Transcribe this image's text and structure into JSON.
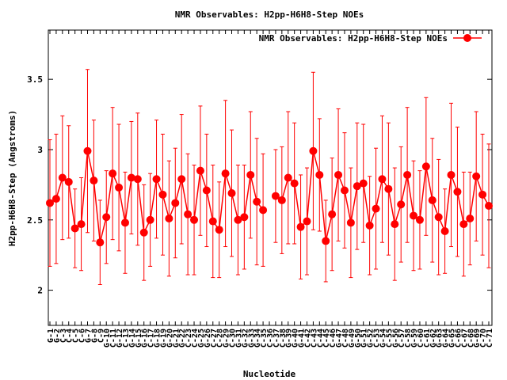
{
  "chart_data": {
    "type": "line",
    "title": "NMR Observables: H2pp-H6H8-Step NOEs",
    "xlabel": "Nucleotide",
    "ylabel": "H2pp-H6H8-Step (Angstroms)",
    "ylim": [
      1.75,
      3.85
    ],
    "yticks": [
      2,
      2.5,
      3,
      3.5
    ],
    "ytick_labels": [
      "2",
      "2.5",
      "3",
      "3.5"
    ],
    "legend": "top-right",
    "grid": false,
    "categories": [
      "G-1",
      "G-2",
      "C-3",
      "C-4",
      "C-5",
      "C-6",
      "G-7",
      "G-8",
      "C-9",
      "G-10",
      "C-11",
      "G-12",
      "C-13",
      "G-14",
      "G-15",
      "G-16",
      "C-17",
      "G-18",
      "G-19",
      "G-20",
      "G-21",
      "G-22",
      "C-23",
      "C-24",
      "G-25",
      "G-26",
      "C-27",
      "C-28",
      "G-29",
      "C-30",
      "G-31",
      "G-32",
      "G-33",
      "G-34",
      "C-35",
      "C-36",
      "C-37",
      "C-38",
      "G-39",
      "G-40",
      "G-41",
      "C-42",
      "C-43",
      "C-44",
      "C-45",
      "C-46",
      "G-47",
      "C-48",
      "G-49",
      "G-50",
      "G-51",
      "G-52",
      "C-53",
      "G-54",
      "C-55",
      "G-56",
      "C-57",
      "C-58",
      "G-59",
      "C-60",
      "C-61",
      "G-62",
      "G-63",
      "G-64",
      "G-65",
      "C-66",
      "C-67",
      "C-68",
      "G-69",
      "C-70",
      "C-71"
    ],
    "series": [
      {
        "name": "NMR Observables: H2pp-H6H8-Step NOEs",
        "color": "#ff0000",
        "values": [
          2.62,
          2.65,
          2.8,
          2.77,
          2.44,
          2.47,
          2.99,
          2.78,
          2.34,
          2.52,
          2.83,
          2.73,
          2.48,
          2.8,
          2.79,
          2.41,
          2.5,
          2.79,
          2.68,
          2.51,
          2.62,
          2.79,
          2.54,
          2.5,
          2.85,
          2.71,
          2.49,
          2.43,
          2.83,
          2.69,
          2.5,
          2.52,
          2.82,
          2.63,
          2.57,
          null,
          2.67,
          2.64,
          2.8,
          2.76,
          2.45,
          2.49,
          2.99,
          2.82,
          2.35,
          2.54,
          2.82,
          2.71,
          2.48,
          2.74,
          2.76,
          2.46,
          2.58,
          2.79,
          2.72,
          2.47,
          2.61,
          2.82,
          2.53,
          2.5,
          2.88,
          2.64,
          2.52,
          2.42,
          2.82,
          2.7,
          2.47,
          2.51,
          2.81,
          2.68,
          2.6
        ],
        "errors": [
          0.45,
          0.46,
          0.44,
          0.4,
          0.28,
          0.33,
          0.58,
          0.43,
          0.3,
          0.33,
          0.47,
          0.45,
          0.36,
          0.4,
          0.47,
          0.34,
          0.33,
          0.42,
          0.43,
          0.41,
          0.39,
          0.46,
          0.43,
          0.39,
          0.46,
          0.4,
          0.4,
          0.34,
          0.52,
          0.45,
          0.39,
          0.37,
          0.45,
          0.45,
          0.4,
          null,
          0.33,
          0.38,
          0.47,
          0.43,
          0.37,
          0.38,
          0.56,
          0.4,
          0.29,
          0.4,
          0.47,
          0.41,
          0.39,
          0.45,
          0.42,
          0.35,
          0.43,
          0.45,
          0.47,
          0.4,
          0.41,
          0.48,
          0.39,
          0.35,
          0.49,
          0.44,
          0.41,
          0.3,
          0.51,
          0.46,
          0.37,
          0.33,
          0.46,
          0.43,
          0.44
        ]
      }
    ]
  }
}
